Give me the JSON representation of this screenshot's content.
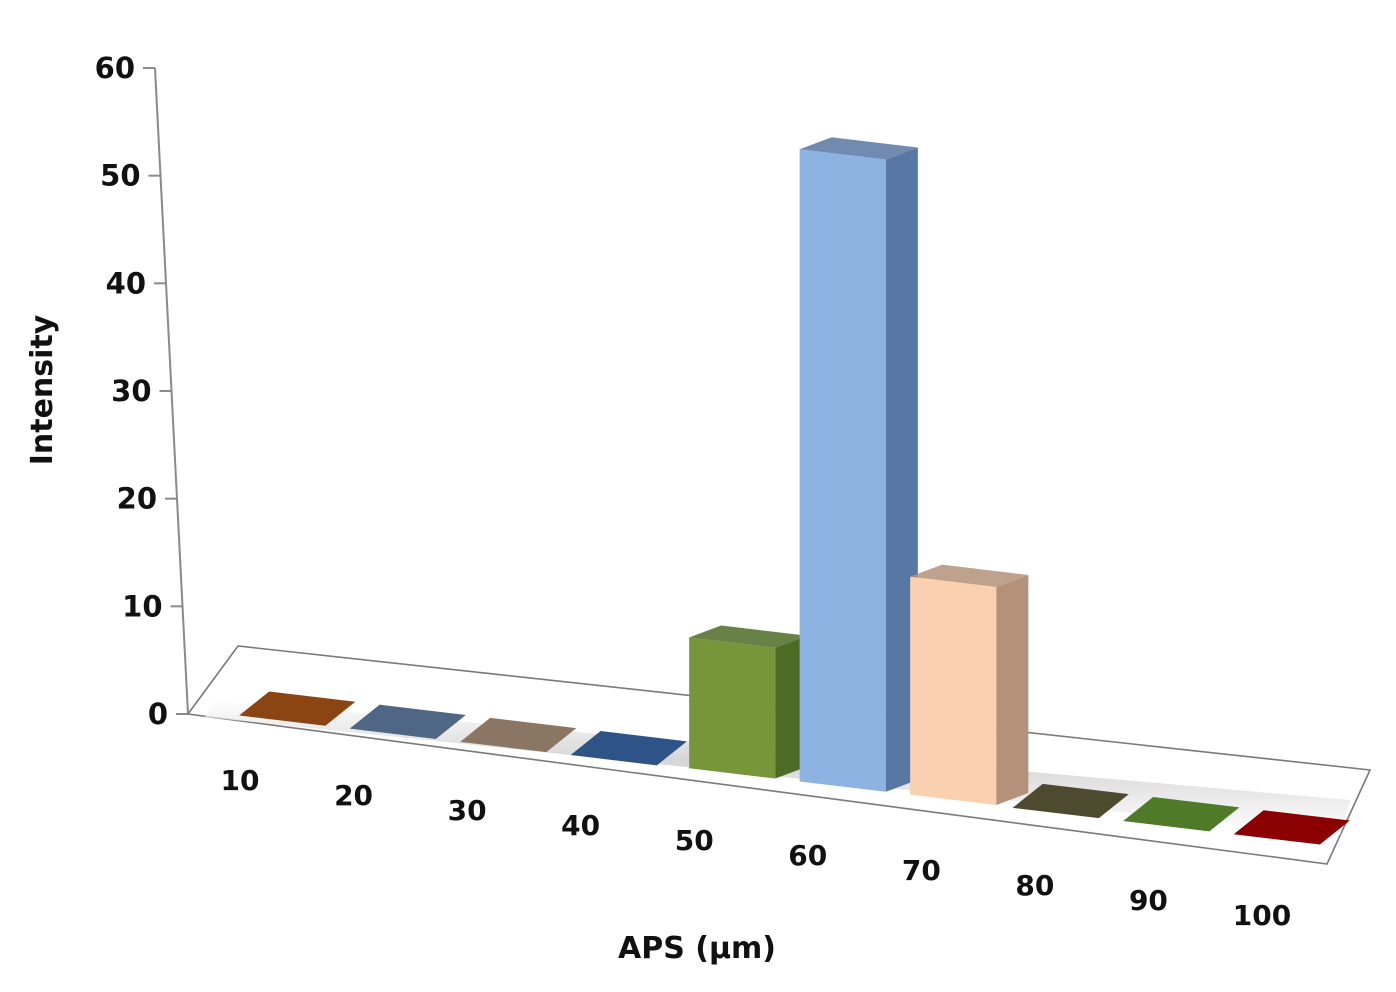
{
  "chart_data": {
    "type": "bar",
    "style": "3d-column",
    "title": "",
    "xlabel": "APS (µm)",
    "ylabel": "Intensity",
    "ylim": [
      0,
      60
    ],
    "yticks": [
      "0",
      "10",
      "20",
      "30",
      "40",
      "50",
      "60"
    ],
    "categories": [
      "10",
      "20",
      "30",
      "40",
      "50",
      "60",
      "70",
      "80",
      "90",
      "100"
    ],
    "values": [
      0,
      0,
      0,
      0,
      12,
      58,
      20,
      0,
      0,
      0
    ],
    "colors": [
      "#8B4513",
      "#4F6785",
      "#8B7563",
      "#2E5487",
      "#77963A",
      "#8DB3E2",
      "#FAD0B0",
      "#4E4A30",
      "#4F7A28",
      "#8B0000"
    ],
    "side_colors": [
      "#6b360f",
      "#3b4f67",
      "#6e5b4c",
      "#223f66",
      "#4E6B26",
      "#5877A2",
      "#B4927A",
      "#3a3724",
      "#3b5d1e",
      "#6a0000"
    ],
    "grid": false,
    "legend": null
  },
  "axes": {
    "y_title": "Intensity",
    "x_title": "APS (µm)"
  }
}
